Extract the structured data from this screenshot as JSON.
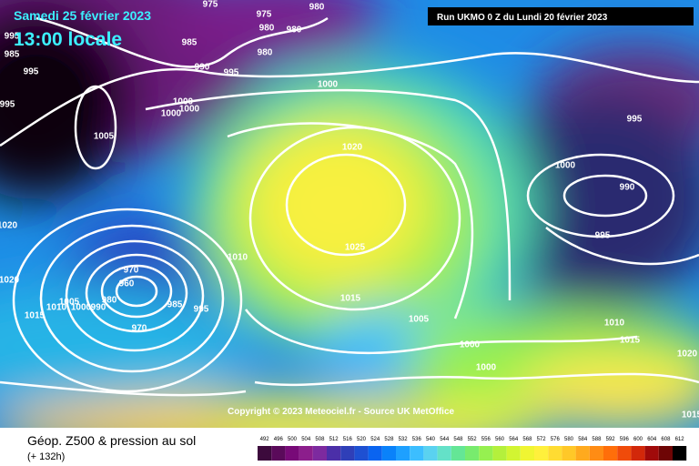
{
  "header": {
    "date": "Samedi 25 février 2023",
    "time": "13:00 locale",
    "run": "Run UKMO 0 Z du Lundi 20 février 2023"
  },
  "copyright": "Copyright © 2023 Meteociel.fr - Source UK MetOffice",
  "isobar_labels": [
    975,
    975,
    980,
    980,
    980,
    995,
    985,
    985,
    980,
    990,
    995,
    995,
    1000,
    1000,
    1000,
    1000,
    995,
    1005,
    1020,
    995,
    1000,
    990,
    995,
    1020,
    1025,
    1010,
    1020,
    1015,
    1015,
    1010,
    1005,
    1000,
    990,
    985,
    995,
    960,
    970,
    970,
    980,
    1005,
    1000,
    1000,
    1010,
    1015,
    1020,
    1015
  ],
  "footer": {
    "title": "Géop. Z500 & pression au sol",
    "forecast": "(+ 132h)"
  },
  "legend": {
    "values": [
      492,
      496,
      500,
      504,
      508,
      512,
      516,
      520,
      524,
      528,
      532,
      536,
      540,
      544,
      548,
      552,
      556,
      560,
      564,
      568,
      572,
      576,
      580,
      584,
      588,
      592,
      596,
      600,
      604,
      608,
      612
    ],
    "colors": [
      "#3c0a3c",
      "#5a0a5a",
      "#780a78",
      "#8c1e8c",
      "#7d2a9f",
      "#4b2fa8",
      "#2f3fb8",
      "#1e50d2",
      "#0a64f0",
      "#0a82fa",
      "#1ea0ff",
      "#3cbeff",
      "#5ad2f0",
      "#64e1c8",
      "#64e696",
      "#78eb6e",
      "#96f050",
      "#b4f03c",
      "#d2f532",
      "#f0f532",
      "#fff03c",
      "#ffdc32",
      "#ffc828",
      "#ffaa1e",
      "#ff8c14",
      "#ff6e0a",
      "#f04b0a",
      "#d2280a",
      "#a00a0a",
      "#6e0505",
      "#000000"
    ]
  }
}
